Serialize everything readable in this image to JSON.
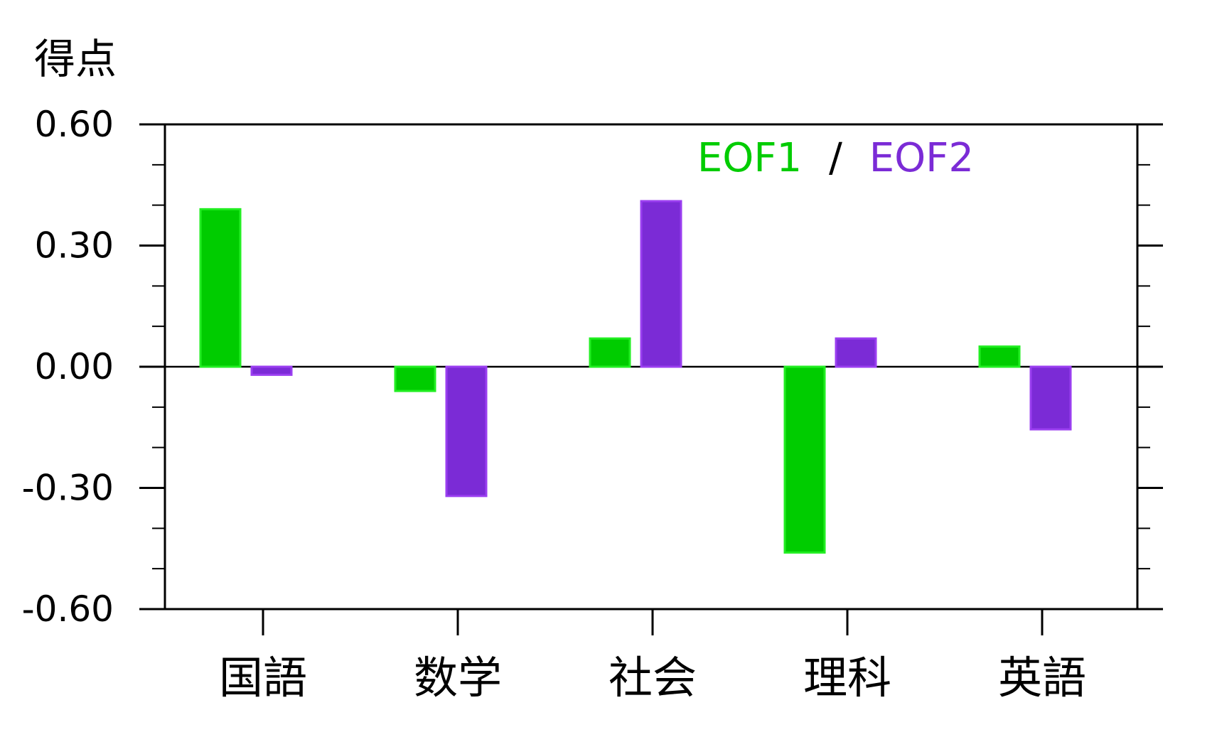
{
  "chart_data": {
    "type": "bar",
    "ylabel": "得点",
    "categories": [
      "国語",
      "数学",
      "社会",
      "理科",
      "英語"
    ],
    "series": [
      {
        "name": "EOF1",
        "color": "#00cc00",
        "border": "#22ee22",
        "values": [
          0.39,
          -0.06,
          0.07,
          -0.46,
          0.05
        ]
      },
      {
        "name": "EOF2",
        "color": "#7b2bd6",
        "border": "#9a3ef0",
        "values": [
          -0.02,
          -0.32,
          0.41,
          0.07,
          -0.155
        ]
      }
    ],
    "ylim": [
      -0.6,
      0.6
    ],
    "yticks": [
      "0.60",
      "0.30",
      "0.00",
      "-0.30",
      "-0.60"
    ],
    "ytick_values": [
      0.6,
      0.3,
      0.0,
      -0.3,
      -0.6
    ],
    "minor_tick_step": 0.1,
    "legend": {
      "separator": "/",
      "placement": "top-right"
    },
    "grid": false
  }
}
